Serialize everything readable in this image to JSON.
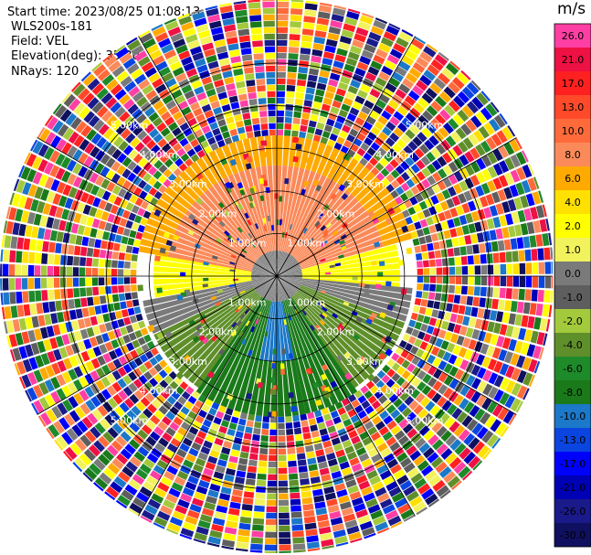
{
  "header": {
    "start_time": "Start time: 2023/08/25 01:08:13",
    "instrument": "WLS200s-181",
    "field": "Field: VEL",
    "elevation": "Elevation(deg): 35.30",
    "nrays": "NRays: 120"
  },
  "colorbar": {
    "unit": "m/s",
    "segments": [
      {
        "value": "26.0",
        "color": "#ff3fa3"
      },
      {
        "value": "21.0",
        "color": "#ee1144"
      },
      {
        "value": "17.0",
        "color": "#ff2020"
      },
      {
        "value": "13.0",
        "color": "#ff4a2a"
      },
      {
        "value": "10.0",
        "color": "#ff6a3a"
      },
      {
        "value": "8.0",
        "color": "#fb8a5a"
      },
      {
        "value": "6.0",
        "color": "#ffaa00"
      },
      {
        "value": "4.0",
        "color": "#ffe000"
      },
      {
        "value": "2.0",
        "color": "#ffff00"
      },
      {
        "value": "1.0",
        "color": "#f2f25c"
      },
      {
        "value": "0.0",
        "color": "#7a7a7a"
      },
      {
        "value": "-1.0",
        "color": "#5e5e5e"
      },
      {
        "value": "-2.0",
        "color": "#a3c93c"
      },
      {
        "value": "-4.0",
        "color": "#5f8f2a"
      },
      {
        "value": "-6.0",
        "color": "#1e8a2a"
      },
      {
        "value": "-8.0",
        "color": "#1a7a1a"
      },
      {
        "value": "-10.0",
        "color": "#1c78c8"
      },
      {
        "value": "-13.0",
        "color": "#0a45e0"
      },
      {
        "value": "-17.0",
        "color": "#0000ff"
      },
      {
        "value": "-21.0",
        "color": "#0000b4"
      },
      {
        "value": "-26.0",
        "color": "#1a1a8a"
      },
      {
        "value": "-30.0",
        "color": "#101060"
      }
    ]
  },
  "chart_data": {
    "type": "heatmap",
    "projection": "polar-ppi",
    "field": "VEL",
    "units": "m/s",
    "elevation_deg": 35.3,
    "n_rays": 120,
    "max_range_km": 6.5,
    "range_ring_labels": [
      "1.00km",
      "2.00km",
      "3.00km",
      "4.00km",
      "5.00km"
    ],
    "range_ring_km": [
      1,
      2,
      3,
      4,
      5
    ],
    "sectors": [
      {
        "range_km": [
          0,
          0.6
        ],
        "azimuth_deg": [
          0,
          360
        ],
        "value_ms": 0.0
      },
      {
        "range_km": [
          0.6,
          2.6
        ],
        "azimuth_deg": [
          280,
          360
        ],
        "value_ms": 8.0
      },
      {
        "range_km": [
          0.6,
          2.6
        ],
        "azimuth_deg": [
          0,
          75
        ],
        "value_ms": 8.0
      },
      {
        "range_km": [
          0.6,
          2.9
        ],
        "azimuth_deg": [
          75,
          95
        ],
        "value_ms": 2.0
      },
      {
        "range_km": [
          0.6,
          2.9
        ],
        "azimuth_deg": [
          260,
          280
        ],
        "value_ms": 2.0
      },
      {
        "range_km": [
          0.6,
          3.2
        ],
        "azimuth_deg": [
          95,
          110
        ],
        "value_ms": 0.0
      },
      {
        "range_km": [
          0.6,
          3.2
        ],
        "azimuth_deg": [
          245,
          260
        ],
        "value_ms": 0.0
      },
      {
        "range_km": [
          0.6,
          3.2
        ],
        "azimuth_deg": [
          110,
          145
        ],
        "value_ms": -4.0
      },
      {
        "range_km": [
          0.6,
          3.2
        ],
        "azimuth_deg": [
          215,
          245
        ],
        "value_ms": -4.0
      },
      {
        "range_km": [
          0.6,
          3.3
        ],
        "azimuth_deg": [
          145,
          168
        ],
        "value_ms": -8.0
      },
      {
        "range_km": [
          0.6,
          3.3
        ],
        "azimuth_deg": [
          192,
          215
        ],
        "value_ms": -8.0
      },
      {
        "range_km": [
          0.6,
          2.0
        ],
        "azimuth_deg": [
          168,
          192
        ],
        "value_ms": -10.0
      },
      {
        "range_km": [
          2.0,
          3.3
        ],
        "azimuth_deg": [
          168,
          192
        ],
        "value_ms": -8.0
      },
      {
        "range_km": [
          2.6,
          3.3
        ],
        "azimuth_deg": [
          280,
          360
        ],
        "value_ms": 6.0
      },
      {
        "range_km": [
          2.6,
          3.3
        ],
        "azimuth_deg": [
          0,
          75
        ],
        "value_ms": 6.0
      },
      {
        "range_km": [
          3.3,
          6.5
        ],
        "azimuth_deg": [
          0,
          360
        ],
        "value_ms": null
      }
    ],
    "outer_zone_note": "range > 3.3km: noisy data spanning full color scale"
  }
}
